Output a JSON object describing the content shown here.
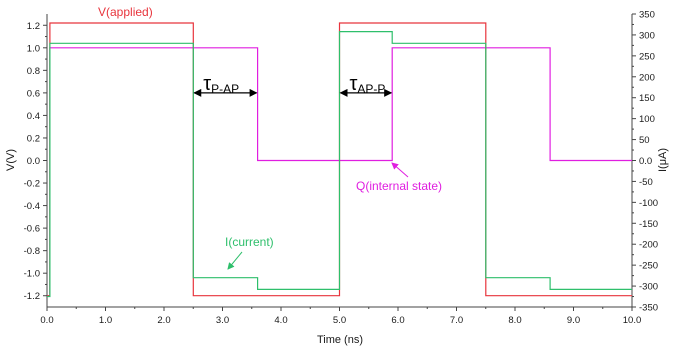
{
  "chart_data": {
    "type": "line",
    "xlabel": "Time (ns)",
    "ylabel_left": "V(V)",
    "ylabel_right": "I(μA)",
    "xlim": [
      0,
      10
    ],
    "ylim_left": [
      -1.3,
      1.3
    ],
    "ylim_right": [
      -350,
      350
    ],
    "x_ticks": [
      "0.0",
      "1.0",
      "2.0",
      "3.0",
      "4.0",
      "5.0",
      "6.0",
      "7.0",
      "8.0",
      "9.0",
      "10.0"
    ],
    "y_ticks_left": [
      "1.2",
      "1.0",
      "0.8",
      "0.6",
      "0.4",
      "0.2",
      "0.0",
      "-0.2",
      "-0.4",
      "-0.6",
      "-0.8",
      "-1.0",
      "-1.2"
    ],
    "y_ticks_right": [
      "350",
      "300",
      "250",
      "200",
      "150",
      "100",
      "50",
      "0.0",
      "-50",
      "-100",
      "-150",
      "-200",
      "-250",
      "-300",
      "-350"
    ],
    "grid": false,
    "series": [
      {
        "name": "V(applied)",
        "color": "#e8343c",
        "axis": "left",
        "x": [
          0,
          0.05,
          0.05,
          2.5,
          2.5,
          5.0,
          5.0,
          7.5,
          7.5,
          10.0
        ],
        "y": [
          -1.2,
          -1.2,
          1.22,
          1.22,
          -1.2,
          -1.2,
          1.22,
          1.22,
          -1.2,
          -1.2
        ]
      },
      {
        "name": "Q(internal state)",
        "color": "#e01ee0",
        "axis": "left",
        "x": [
          0,
          0.05,
          0.05,
          3.6,
          3.6,
          5.9,
          5.9,
          8.6,
          8.6,
          10.0
        ],
        "y": [
          -1.2,
          -1.2,
          1.0,
          1.0,
          0.0,
          0.0,
          1.0,
          1.0,
          0.0,
          0.0
        ]
      },
      {
        "name": "I(current)",
        "color": "#2ebf6b",
        "axis": "right",
        "x": [
          0,
          0.05,
          0.05,
          2.5,
          2.5,
          3.6,
          3.6,
          5.0,
          5.0,
          5.9,
          5.9,
          7.5,
          7.5,
          8.6,
          8.6,
          10.0
        ],
        "y": [
          -325,
          -325,
          280,
          280,
          -280,
          -280,
          -308,
          -308,
          308,
          308,
          280,
          280,
          -280,
          -280,
          -308,
          -308
        ]
      }
    ],
    "annotations": {
      "v_label": "V(applied)",
      "q_label": "Q(internal state)",
      "i_label": "I(current)",
      "tau1_symbol": "τ",
      "tau1_sub": "P-AP",
      "tau2_symbol": "τ",
      "tau2_sub": "AP-P",
      "tau1_range": [
        2.5,
        3.6
      ],
      "tau2_range": [
        5.0,
        5.9
      ],
      "tau_y": 0.6
    }
  }
}
